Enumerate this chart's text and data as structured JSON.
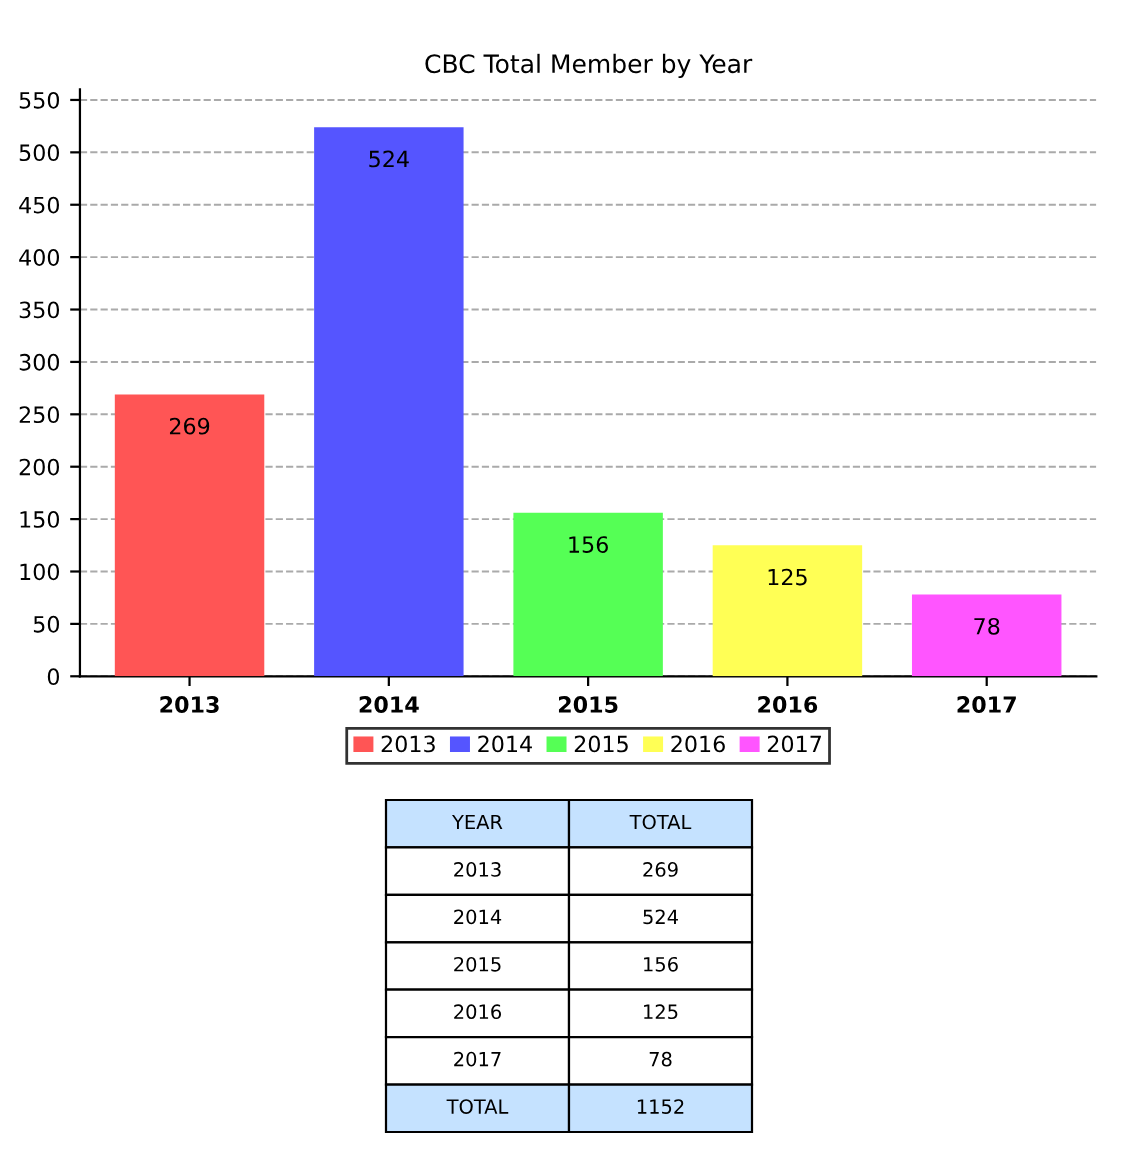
{
  "chart_data": {
    "type": "bar",
    "title": "CBC Total Member by Year",
    "categories": [
      "2013",
      "2014",
      "2015",
      "2016",
      "2017"
    ],
    "series": [
      {
        "name": "2013",
        "color": "#ff5555",
        "values": [
          269,
          null,
          null,
          null,
          null
        ]
      },
      {
        "name": "2014",
        "color": "#5555ff",
        "values": [
          null,
          524,
          null,
          null,
          null
        ]
      },
      {
        "name": "2015",
        "color": "#55ff55",
        "values": [
          null,
          null,
          156,
          null,
          null
        ]
      },
      {
        "name": "2016",
        "color": "#ffff55",
        "values": [
          null,
          null,
          null,
          125,
          null
        ]
      },
      {
        "name": "2017",
        "color": "#ff55ff",
        "values": [
          null,
          null,
          null,
          null,
          78
        ]
      }
    ],
    "ylim": [
      0,
      560
    ],
    "yticks": [
      0,
      50,
      100,
      150,
      200,
      250,
      300,
      350,
      400,
      450,
      500,
      550
    ],
    "grid": "y",
    "legend": "bottom",
    "data_labels": true,
    "annotations": [
      "YEAR",
      "TOTAL",
      "269",
      "524",
      "156",
      "125",
      "78",
      "TOTAL",
      "1152"
    ]
  }
}
